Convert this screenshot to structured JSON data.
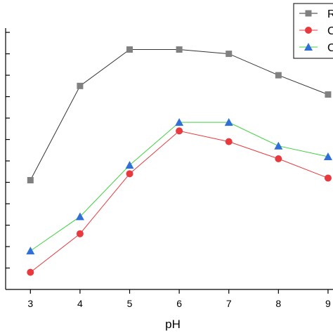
{
  "chart_data": {
    "type": "line",
    "title": "",
    "xlabel": "pH",
    "ylabel": "",
    "x": [
      3,
      4,
      5,
      6,
      7,
      8,
      9
    ],
    "xlim": [
      2.5,
      9.1
    ],
    "ylim": [
      0,
      12.2
    ],
    "grid": false,
    "legend_position": "top-right",
    "series": [
      {
        "name": "R",
        "color": "#808080",
        "line_color": "#333333",
        "marker": "square",
        "values": [
          5.1,
          9.5,
          11.2,
          11.2,
          11.0,
          10.0,
          9.1
        ]
      },
      {
        "name": "C",
        "color": "#e8393e",
        "line_color": "#e8393e",
        "marker": "circle",
        "values": [
          0.8,
          2.6,
          5.4,
          7.4,
          6.9,
          6.1,
          5.2
        ]
      },
      {
        "name": "C",
        "color": "#2f6fd6",
        "line_color": "#3fd23f",
        "marker": "triangle",
        "values": [
          1.8,
          3.4,
          5.8,
          7.8,
          7.8,
          6.7,
          6.2
        ]
      }
    ]
  }
}
